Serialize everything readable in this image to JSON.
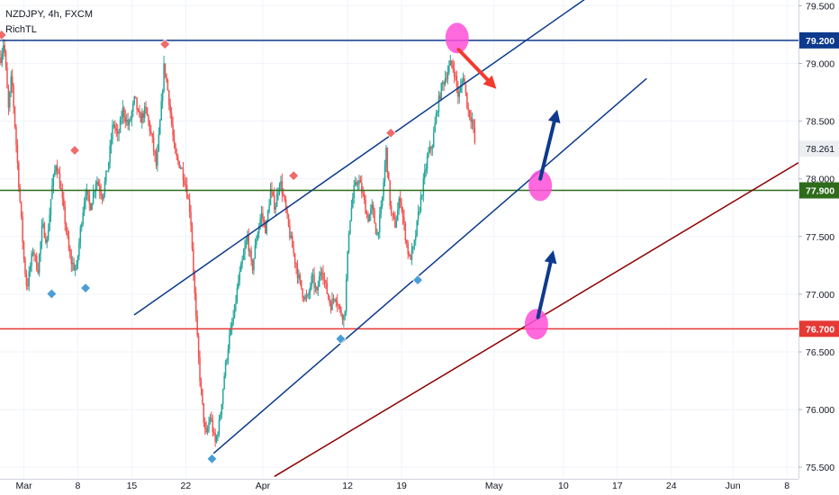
{
  "chart_data": {
    "type": "candlestick",
    "legend": {
      "symbol": "NZDJPY, 4h, FXCM",
      "indicator": "RichTL"
    },
    "colors": {
      "up": "#26a69a",
      "down": "#ef5350",
      "resistance": "#0d3a8c",
      "support_mid": "#2e6b1a",
      "support_low": "#e53935",
      "channel": "#0d3a8c",
      "trendline": "#8b0000",
      "highlight": "#ff4fd8",
      "arrow_down": "#f23a2e",
      "arrow_up": "#0d3a8c",
      "marker_high": "#f06b6b",
      "marker_low": "#4a9ed6",
      "axis_text": "#131722",
      "grid": "#f0f3fa"
    },
    "y_axis": {
      "min": 75.4,
      "max": 79.55,
      "ticks": [
        "79.500",
        "79.000",
        "78.500",
        "78.000",
        "77.500",
        "77.000",
        "76.500",
        "76.000",
        "75.500"
      ]
    },
    "x_axis": {
      "ticks": [
        {
          "label": "Mar",
          "day": 0
        },
        {
          "label": "8",
          "day": 7
        },
        {
          "label": "15",
          "day": 14
        },
        {
          "label": "22",
          "day": 21
        },
        {
          "label": "Apr",
          "day": 31
        },
        {
          "label": "12",
          "day": 42
        },
        {
          "label": "19",
          "day": 49
        },
        {
          "label": "May",
          "day": 61
        },
        {
          "label": "10",
          "day": 70
        },
        {
          "label": "17",
          "day": 77
        },
        {
          "label": "24",
          "day": 84
        },
        {
          "label": "Jun",
          "day": 92
        },
        {
          "label": "8",
          "day": 99
        }
      ],
      "min_day": -3.1,
      "max_day": 100.5
    },
    "horizontal_levels": [
      {
        "value": 79.2,
        "label": "79.200",
        "role": "resistance"
      },
      {
        "value": 77.9,
        "label": "77.900",
        "role": "support_mid"
      },
      {
        "value": 76.7,
        "label": "76.700",
        "role": "support_low"
      }
    ],
    "current_price": {
      "value": 78.261,
      "label": "78.261"
    },
    "price_path": [
      [
        -3.0,
        79.05
      ],
      [
        -2.6,
        79.2
      ],
      [
        -2.0,
        78.6
      ],
      [
        -1.6,
        78.9
      ],
      [
        -1.0,
        78.3
      ],
      [
        -0.4,
        77.7
      ],
      [
        0.0,
        77.3
      ],
      [
        0.4,
        77.05
      ],
      [
        1.2,
        77.4
      ],
      [
        1.8,
        77.2
      ],
      [
        2.4,
        77.6
      ],
      [
        3.0,
        77.45
      ],
      [
        3.6,
        77.9
      ],
      [
        4.2,
        78.15
      ],
      [
        4.8,
        77.9
      ],
      [
        5.4,
        77.6
      ],
      [
        6.0,
        77.3
      ],
      [
        6.8,
        77.2
      ],
      [
        7.4,
        77.6
      ],
      [
        8.0,
        77.9
      ],
      [
        8.6,
        77.75
      ],
      [
        9.4,
        78.0
      ],
      [
        10.2,
        77.85
      ],
      [
        11.0,
        78.15
      ],
      [
        11.6,
        78.5
      ],
      [
        12.2,
        78.35
      ],
      [
        12.8,
        78.6
      ],
      [
        13.6,
        78.45
      ],
      [
        14.4,
        78.7
      ],
      [
        15.0,
        78.5
      ],
      [
        15.8,
        78.6
      ],
      [
        16.6,
        78.35
      ],
      [
        17.2,
        78.1
      ],
      [
        17.8,
        78.6
      ],
      [
        18.2,
        79.0
      ],
      [
        18.8,
        78.7
      ],
      [
        19.6,
        78.2
      ],
      [
        20.4,
        78.1
      ],
      [
        21.0,
        77.95
      ],
      [
        21.6,
        77.7
      ],
      [
        22.0,
        77.2
      ],
      [
        22.4,
        76.7
      ],
      [
        22.8,
        76.3
      ],
      [
        23.2,
        76.0
      ],
      [
        23.6,
        75.75
      ],
      [
        24.2,
        75.95
      ],
      [
        24.8,
        75.7
      ],
      [
        25.4,
        75.9
      ],
      [
        26.0,
        76.3
      ],
      [
        26.6,
        76.6
      ],
      [
        27.2,
        76.8
      ],
      [
        27.8,
        77.1
      ],
      [
        28.4,
        77.3
      ],
      [
        29.0,
        77.5
      ],
      [
        29.6,
        77.2
      ],
      [
        30.2,
        77.5
      ],
      [
        30.8,
        77.7
      ],
      [
        31.4,
        77.55
      ],
      [
        32.0,
        77.9
      ],
      [
        32.6,
        77.75
      ],
      [
        33.2,
        78.0
      ],
      [
        33.8,
        77.8
      ],
      [
        34.4,
        77.55
      ],
      [
        35.0,
        77.35
      ],
      [
        35.6,
        77.15
      ],
      [
        36.2,
        77.0
      ],
      [
        36.8,
        76.95
      ],
      [
        37.4,
        77.15
      ],
      [
        38.0,
        77.0
      ],
      [
        38.6,
        77.25
      ],
      [
        39.2,
        77.05
      ],
      [
        39.8,
        76.9
      ],
      [
        40.4,
        77.0
      ],
      [
        41.0,
        76.85
      ],
      [
        41.6,
        76.8
      ],
      [
        42.2,
        77.6
      ],
      [
        42.8,
        77.9
      ],
      [
        43.4,
        78.0
      ],
      [
        44.0,
        77.85
      ],
      [
        44.6,
        77.65
      ],
      [
        45.2,
        77.75
      ],
      [
        45.8,
        77.5
      ],
      [
        46.4,
        77.75
      ],
      [
        47.0,
        78.25
      ],
      [
        47.6,
        77.7
      ],
      [
        48.2,
        77.6
      ],
      [
        48.8,
        77.85
      ],
      [
        49.4,
        77.55
      ],
      [
        50.0,
        77.3
      ],
      [
        50.6,
        77.4
      ],
      [
        51.2,
        77.7
      ],
      [
        51.8,
        77.95
      ],
      [
        52.4,
        78.2
      ],
      [
        53.0,
        78.3
      ],
      [
        53.6,
        78.6
      ],
      [
        54.2,
        78.8
      ],
      [
        54.8,
        78.9
      ],
      [
        55.4,
        79.0
      ],
      [
        55.8,
        78.95
      ],
      [
        56.4,
        78.7
      ],
      [
        57.0,
        78.9
      ],
      [
        57.6,
        78.6
      ],
      [
        58.2,
        78.5
      ],
      [
        58.6,
        78.25
      ]
    ],
    "markers": [
      {
        "type": "high",
        "day": -2.9,
        "value": 79.2
      },
      {
        "type": "high",
        "day": 6.6,
        "value": 78.2
      },
      {
        "type": "high",
        "day": 18.3,
        "value": 79.12
      },
      {
        "type": "high",
        "day": 35.0,
        "value": 77.98
      },
      {
        "type": "high",
        "day": 47.6,
        "value": 78.35
      },
      {
        "type": "low",
        "day": 3.6,
        "value": 77.05
      },
      {
        "type": "low",
        "day": 8.0,
        "value": 77.1
      },
      {
        "type": "low",
        "day": 24.4,
        "value": 75.62
      },
      {
        "type": "low",
        "day": 41.1,
        "value": 76.66
      },
      {
        "type": "low",
        "day": 51.1,
        "value": 77.17
      }
    ],
    "channel_lines": [
      {
        "role": "channel_upper",
        "from": [
          14.3,
          76.82
        ],
        "to": [
          73.5,
          79.59
        ]
      },
      {
        "role": "channel_lower",
        "from": [
          24.6,
          75.62
        ],
        "to": [
          80.8,
          78.87
        ]
      },
      {
        "role": "trendline",
        "from": [
          32.5,
          75.42
        ],
        "to": [
          100.5,
          78.14
        ]
      }
    ],
    "highlights": [
      {
        "day": 56.2,
        "value": 79.22
      },
      {
        "day": 67.0,
        "value": 77.94
      },
      {
        "day": 66.5,
        "value": 76.74
      }
    ],
    "arrows": [
      {
        "color_role": "arrow_down",
        "from": [
          56.4,
          79.12
        ],
        "to": [
          61.3,
          78.78
        ]
      },
      {
        "color_role": "arrow_up",
        "from": [
          67.0,
          78.0
        ],
        "to": [
          69.2,
          78.6
        ]
      },
      {
        "color_role": "arrow_up",
        "from": [
          66.7,
          76.8
        ],
        "to": [
          68.7,
          77.38
        ]
      }
    ]
  }
}
